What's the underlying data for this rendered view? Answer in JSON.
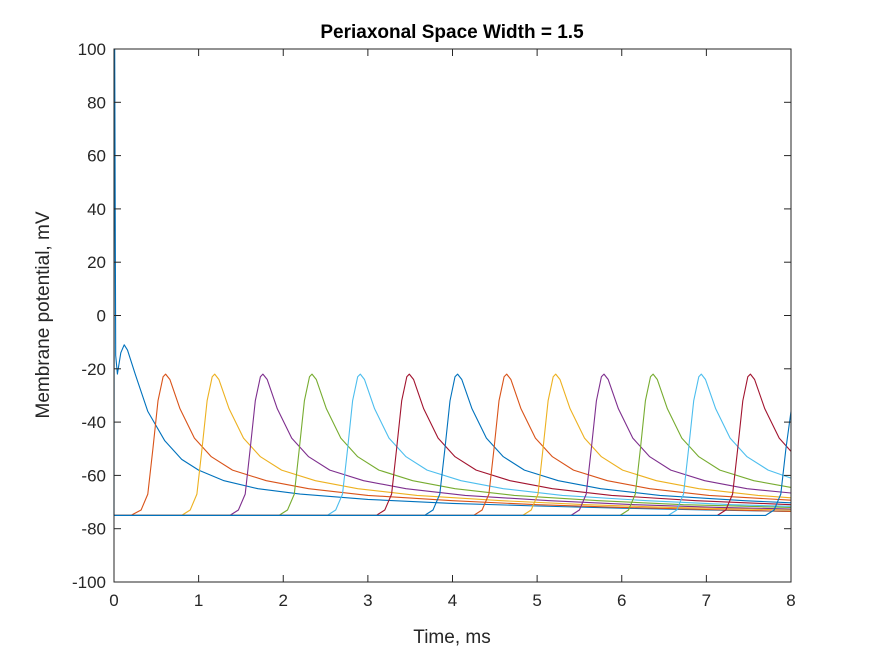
{
  "chart_data": {
    "type": "line",
    "title": "Periaxonal Space Width = 1.5",
    "xlabel": "Time, ms",
    "ylabel": "Membrane potential, mV",
    "xlim": [
      0,
      8
    ],
    "ylim": [
      -100,
      100
    ],
    "xticks": [
      0,
      1,
      2,
      3,
      4,
      5,
      6,
      7,
      8
    ],
    "yticks": [
      -100,
      -80,
      -60,
      -40,
      -20,
      0,
      20,
      40,
      60,
      80,
      100
    ],
    "grid": false,
    "box": true,
    "resting_potential": -75,
    "series": [
      {
        "color": "#0072BD",
        "points": [
          [
            0,
            -75
          ],
          [
            0.003,
            100
          ],
          [
            0.008,
            100
          ],
          [
            0.02,
            -15
          ],
          [
            0.04,
            -22
          ],
          [
            0.08,
            -14
          ],
          [
            0.12,
            -11
          ],
          [
            0.16,
            -13
          ],
          [
            0.25,
            -22
          ],
          [
            0.4,
            -36
          ],
          [
            0.6,
            -47
          ],
          [
            0.8,
            -54
          ],
          [
            1.0,
            -58
          ],
          [
            1.3,
            -62
          ],
          [
            1.7,
            -65
          ],
          [
            2.2,
            -67
          ],
          [
            3.0,
            -69
          ],
          [
            4.0,
            -70.5
          ],
          [
            5.0,
            -71.5
          ],
          [
            6.0,
            -72.3
          ],
          [
            7.0,
            -73
          ],
          [
            8.0,
            -73.5
          ]
        ]
      },
      {
        "color": "#D95319",
        "points": [
          [
            0,
            -75
          ],
          [
            0.2,
            -75
          ],
          [
            0.32,
            -73
          ],
          [
            0.4,
            -67
          ],
          [
            0.46,
            -50
          ],
          [
            0.52,
            -32
          ],
          [
            0.58,
            -23
          ],
          [
            0.61,
            -22
          ],
          [
            0.66,
            -24
          ],
          [
            0.78,
            -35
          ],
          [
            0.95,
            -46
          ],
          [
            1.15,
            -53
          ],
          [
            1.4,
            -58
          ],
          [
            1.8,
            -62
          ],
          [
            2.3,
            -65
          ],
          [
            3.0,
            -67.5
          ],
          [
            4.0,
            -69.5
          ],
          [
            5.0,
            -71
          ],
          [
            6.0,
            -72
          ],
          [
            7.0,
            -72.8
          ],
          [
            8.0,
            -73.5
          ]
        ]
      },
      {
        "color": "#EDB120",
        "points": [
          [
            0,
            -75
          ],
          [
            0.8,
            -75
          ],
          [
            0.9,
            -73
          ],
          [
            0.98,
            -67
          ],
          [
            1.04,
            -50
          ],
          [
            1.1,
            -32
          ],
          [
            1.16,
            -23
          ],
          [
            1.19,
            -22
          ],
          [
            1.24,
            -24
          ],
          [
            1.36,
            -35
          ],
          [
            1.53,
            -46
          ],
          [
            1.73,
            -53
          ],
          [
            1.98,
            -58
          ],
          [
            2.38,
            -62
          ],
          [
            2.88,
            -65
          ],
          [
            3.58,
            -67.5
          ],
          [
            4.58,
            -69.5
          ],
          [
            5.58,
            -71
          ],
          [
            6.58,
            -72
          ],
          [
            8.0,
            -73
          ]
        ]
      },
      {
        "color": "#7E2F8E",
        "points": [
          [
            0,
            -75
          ],
          [
            1.37,
            -75
          ],
          [
            1.47,
            -73
          ],
          [
            1.55,
            -67
          ],
          [
            1.61,
            -50
          ],
          [
            1.67,
            -32
          ],
          [
            1.73,
            -23
          ],
          [
            1.76,
            -22
          ],
          [
            1.81,
            -24
          ],
          [
            1.93,
            -35
          ],
          [
            2.1,
            -46
          ],
          [
            2.3,
            -53
          ],
          [
            2.55,
            -58
          ],
          [
            2.95,
            -62
          ],
          [
            3.45,
            -65
          ],
          [
            4.15,
            -67.5
          ],
          [
            5.15,
            -69.5
          ],
          [
            6.15,
            -71
          ],
          [
            7.15,
            -72
          ],
          [
            8.0,
            -72.6
          ]
        ]
      },
      {
        "color": "#77AC30",
        "points": [
          [
            0,
            -75
          ],
          [
            1.95,
            -75
          ],
          [
            2.05,
            -73
          ],
          [
            2.13,
            -67
          ],
          [
            2.19,
            -50
          ],
          [
            2.25,
            -32
          ],
          [
            2.31,
            -23
          ],
          [
            2.34,
            -22
          ],
          [
            2.39,
            -24
          ],
          [
            2.51,
            -35
          ],
          [
            2.68,
            -46
          ],
          [
            2.88,
            -53
          ],
          [
            3.13,
            -58
          ],
          [
            3.53,
            -62
          ],
          [
            4.03,
            -65
          ],
          [
            4.73,
            -67.5
          ],
          [
            5.73,
            -69.5
          ],
          [
            6.73,
            -71
          ],
          [
            8.0,
            -72
          ]
        ]
      },
      {
        "color": "#4DBEEE",
        "points": [
          [
            0,
            -75
          ],
          [
            2.52,
            -75
          ],
          [
            2.62,
            -73
          ],
          [
            2.7,
            -67
          ],
          [
            2.76,
            -50
          ],
          [
            2.82,
            -32
          ],
          [
            2.88,
            -23
          ],
          [
            2.91,
            -22
          ],
          [
            2.96,
            -24
          ],
          [
            3.08,
            -35
          ],
          [
            3.25,
            -46
          ],
          [
            3.45,
            -53
          ],
          [
            3.7,
            -58
          ],
          [
            4.1,
            -62
          ],
          [
            4.6,
            -65
          ],
          [
            5.3,
            -67.5
          ],
          [
            6.3,
            -69.5
          ],
          [
            7.3,
            -71
          ],
          [
            8.0,
            -71.6
          ]
        ]
      },
      {
        "color": "#A2142F",
        "points": [
          [
            0,
            -75
          ],
          [
            3.1,
            -75
          ],
          [
            3.2,
            -73
          ],
          [
            3.28,
            -67
          ],
          [
            3.34,
            -50
          ],
          [
            3.4,
            -32
          ],
          [
            3.46,
            -23
          ],
          [
            3.49,
            -22
          ],
          [
            3.54,
            -24
          ],
          [
            3.66,
            -35
          ],
          [
            3.83,
            -46
          ],
          [
            4.03,
            -53
          ],
          [
            4.28,
            -58
          ],
          [
            4.68,
            -62
          ],
          [
            5.18,
            -65
          ],
          [
            5.88,
            -67.5
          ],
          [
            6.88,
            -69.5
          ],
          [
            8.0,
            -71
          ]
        ]
      },
      {
        "color": "#0072BD",
        "points": [
          [
            0,
            -75
          ],
          [
            3.67,
            -75
          ],
          [
            3.77,
            -73
          ],
          [
            3.85,
            -67
          ],
          [
            3.91,
            -50
          ],
          [
            3.97,
            -32
          ],
          [
            4.03,
            -23
          ],
          [
            4.06,
            -22
          ],
          [
            4.11,
            -24
          ],
          [
            4.23,
            -35
          ],
          [
            4.4,
            -46
          ],
          [
            4.6,
            -53
          ],
          [
            4.85,
            -58
          ],
          [
            5.25,
            -62
          ],
          [
            5.75,
            -65
          ],
          [
            6.45,
            -67.5
          ],
          [
            7.45,
            -69.5
          ],
          [
            8.0,
            -70.3
          ]
        ]
      },
      {
        "color": "#D95319",
        "points": [
          [
            0,
            -75
          ],
          [
            4.25,
            -75
          ],
          [
            4.35,
            -73
          ],
          [
            4.43,
            -67
          ],
          [
            4.49,
            -50
          ],
          [
            4.55,
            -32
          ],
          [
            4.61,
            -23
          ],
          [
            4.64,
            -22
          ],
          [
            4.69,
            -24
          ],
          [
            4.81,
            -35
          ],
          [
            4.98,
            -46
          ],
          [
            5.18,
            -53
          ],
          [
            5.43,
            -58
          ],
          [
            5.83,
            -62
          ],
          [
            6.33,
            -65
          ],
          [
            7.03,
            -67.5
          ],
          [
            8.0,
            -69.3
          ]
        ]
      },
      {
        "color": "#EDB120",
        "points": [
          [
            0,
            -75
          ],
          [
            4.83,
            -75
          ],
          [
            4.93,
            -73
          ],
          [
            5.01,
            -67
          ],
          [
            5.07,
            -50
          ],
          [
            5.13,
            -32
          ],
          [
            5.19,
            -23
          ],
          [
            5.22,
            -22
          ],
          [
            5.27,
            -24
          ],
          [
            5.39,
            -35
          ],
          [
            5.56,
            -46
          ],
          [
            5.76,
            -53
          ],
          [
            6.01,
            -58
          ],
          [
            6.41,
            -62
          ],
          [
            6.91,
            -65
          ],
          [
            7.61,
            -67.5
          ],
          [
            8.0,
            -68.4
          ]
        ]
      },
      {
        "color": "#7E2F8E",
        "points": [
          [
            0,
            -75
          ],
          [
            5.4,
            -75
          ],
          [
            5.5,
            -73
          ],
          [
            5.58,
            -67
          ],
          [
            5.64,
            -50
          ],
          [
            5.7,
            -32
          ],
          [
            5.76,
            -23
          ],
          [
            5.79,
            -22
          ],
          [
            5.84,
            -24
          ],
          [
            5.96,
            -35
          ],
          [
            6.13,
            -46
          ],
          [
            6.33,
            -53
          ],
          [
            6.58,
            -58
          ],
          [
            6.98,
            -62
          ],
          [
            7.48,
            -65
          ],
          [
            8.0,
            -66.6
          ]
        ]
      },
      {
        "color": "#77AC30",
        "points": [
          [
            0,
            -75
          ],
          [
            5.98,
            -75
          ],
          [
            6.08,
            -73
          ],
          [
            6.16,
            -67
          ],
          [
            6.22,
            -50
          ],
          [
            6.28,
            -32
          ],
          [
            6.34,
            -23
          ],
          [
            6.37,
            -22
          ],
          [
            6.42,
            -24
          ],
          [
            6.54,
            -35
          ],
          [
            6.71,
            -46
          ],
          [
            6.91,
            -53
          ],
          [
            7.16,
            -58
          ],
          [
            7.56,
            -62
          ],
          [
            8.0,
            -64.5
          ]
        ]
      },
      {
        "color": "#4DBEEE",
        "points": [
          [
            0,
            -75
          ],
          [
            6.55,
            -75
          ],
          [
            6.65,
            -73
          ],
          [
            6.73,
            -67
          ],
          [
            6.79,
            -50
          ],
          [
            6.85,
            -32
          ],
          [
            6.91,
            -23
          ],
          [
            6.94,
            -22
          ],
          [
            6.99,
            -24
          ],
          [
            7.11,
            -35
          ],
          [
            7.28,
            -46
          ],
          [
            7.48,
            -53
          ],
          [
            7.73,
            -58
          ],
          [
            8.0,
            -61
          ]
        ]
      },
      {
        "color": "#A2142F",
        "points": [
          [
            0,
            -75
          ],
          [
            7.13,
            -75
          ],
          [
            7.23,
            -73
          ],
          [
            7.31,
            -67
          ],
          [
            7.37,
            -50
          ],
          [
            7.43,
            -32
          ],
          [
            7.49,
            -23
          ],
          [
            7.52,
            -22
          ],
          [
            7.57,
            -24
          ],
          [
            7.69,
            -35
          ],
          [
            7.86,
            -46
          ],
          [
            8.0,
            -51
          ]
        ]
      },
      {
        "color": "#0072BD",
        "points": [
          [
            0,
            -75
          ],
          [
            7.7,
            -75
          ],
          [
            7.8,
            -73
          ],
          [
            7.88,
            -67
          ],
          [
            7.94,
            -50
          ],
          [
            8.0,
            -36
          ]
        ]
      }
    ]
  }
}
